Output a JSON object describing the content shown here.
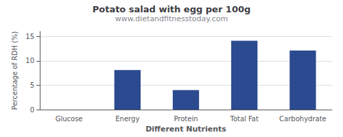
{
  "chart_data": {
    "type": "bar",
    "title": "Potato salad with egg per 100g",
    "subtitle": "www.dietandfitnesstoday.com",
    "xlabel": "Different Nutrients",
    "ylabel": "Percentage of RDH (%)",
    "categories": [
      "Glucose",
      "Energy",
      "Protein",
      "Total Fat",
      "Carbohydrate"
    ],
    "values": [
      0,
      8.1,
      4.0,
      14.1,
      12.1
    ],
    "color": "#2b4a8f",
    "ylim": [
      0,
      16
    ],
    "yticks": [
      0,
      5,
      10,
      15
    ],
    "grid": true
  }
}
